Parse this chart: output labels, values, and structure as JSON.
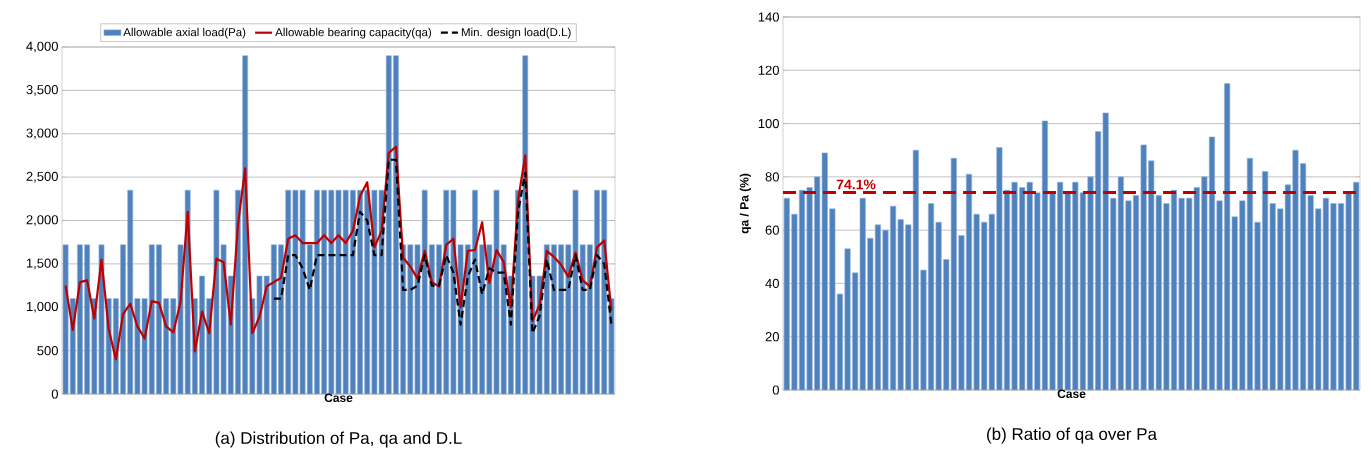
{
  "chart_data": [
    {
      "type": "bar",
      "title": "(a) Distribution of Pa, qa and D.L",
      "xlabel": "Case",
      "categories": [
        null,
        null,
        null,
        null,
        null,
        null,
        null,
        null,
        null,
        null,
        null,
        null,
        null,
        null,
        null,
        null,
        null,
        null,
        null,
        null,
        null,
        null,
        null,
        null,
        null,
        null,
        null,
        null,
        null,
        null,
        null,
        null,
        null,
        null,
        null,
        null,
        null,
        null,
        null,
        null,
        null,
        null,
        null,
        null,
        null,
        null,
        null,
        null,
        null,
        null,
        null,
        null,
        null,
        null,
        null,
        null,
        null,
        null,
        null,
        null,
        null,
        null,
        null,
        null,
        null,
        null,
        null,
        null,
        null,
        null,
        null,
        null,
        null,
        null,
        null,
        null,
        null
      ],
      "ylim": [
        0,
        4000
      ],
      "yticks": [
        0,
        500,
        {
          "value": 1000,
          "label": "1,000"
        },
        {
          "value": 1500,
          "label": "1,500"
        },
        {
          "value": 2000,
          "label": "2,000"
        },
        {
          "value": 2500,
          "label": "2,500"
        },
        {
          "value": 3000,
          "label": "3,000"
        },
        {
          "value": 3500,
          "label": "3,500"
        },
        {
          "value": 4000,
          "label": "4,000"
        }
      ],
      "grid": "y",
      "legend": "top",
      "series": [
        {
          "name": "Allowable axial load(Pa)",
          "type": "bar",
          "color": "#4f81bd",
          "values": [
            1720,
            1100,
            1720,
            1720,
            1100,
            1720,
            1100,
            1100,
            1720,
            2350,
            1100,
            1100,
            1720,
            1720,
            1100,
            1100,
            1720,
            2350,
            1100,
            1360,
            1100,
            2350,
            1720,
            1360,
            2350,
            3900,
            1100,
            1360,
            1360,
            1720,
            1720,
            2350,
            2350,
            2350,
            1720,
            2350,
            2350,
            2350,
            2350,
            2350,
            2350,
            2350,
            2350,
            2350,
            2350,
            3900,
            3900,
            1720,
            1720,
            1720,
            2350,
            1720,
            1720,
            2350,
            2350,
            1720,
            1720,
            2350,
            1720,
            1720,
            2350,
            1720,
            1360,
            2350,
            3900,
            1360,
            1360,
            1720,
            1720,
            1720,
            1720,
            2350,
            1720,
            1720,
            2350,
            2350,
            1100
          ]
        },
        {
          "name": "Allowable bearing capacity(qa)",
          "type": "line",
          "color": "#c00000",
          "line_style": "solid",
          "values": [
            1250,
            740,
            1290,
            1310,
            870,
            1550,
            750,
            400,
            920,
            1040,
            780,
            640,
            1070,
            1050,
            780,
            710,
            1060,
            2100,
            490,
            950,
            700,
            1560,
            1520,
            800,
            1950,
            2600,
            700,
            890,
            1240,
            1290,
            1340,
            1790,
            1830,
            1740,
            1740,
            1740,
            1830,
            1740,
            1830,
            1740,
            1880,
            2280,
            2440,
            1690,
            1880,
            2780,
            2850,
            1570,
            1470,
            1330,
            1650,
            1290,
            1240,
            1720,
            1790,
            1000,
            1650,
            1660,
            1980,
            1280,
            1660,
            1520,
            1000,
            2230,
            2750,
            840,
            1030,
            1650,
            1580,
            1490,
            1350,
            1630,
            1310,
            1240,
            1690,
            1770,
            960
          ]
        },
        {
          "name": "Min. design load(D.L)",
          "type": "line",
          "color": "#000000",
          "line_style": "dashed",
          "values": [
            null,
            null,
            null,
            null,
            null,
            null,
            null,
            null,
            null,
            null,
            null,
            null,
            null,
            null,
            null,
            null,
            null,
            null,
            null,
            null,
            null,
            null,
            null,
            null,
            null,
            null,
            null,
            null,
            null,
            1100,
            1100,
            1600,
            1600,
            1450,
            1200,
            1600,
            1600,
            1600,
            1600,
            1600,
            1600,
            2100,
            2000,
            1600,
            1600,
            2700,
            2700,
            1200,
            1200,
            1250,
            1600,
            1250,
            1250,
            1600,
            1400,
            800,
            1350,
            1550,
            1150,
            1450,
            1400,
            1400,
            800,
            2100,
            2550,
            700,
            900,
            1550,
            1200,
            1200,
            1200,
            1600,
            1200,
            1200,
            1600,
            1500,
            800
          ]
        }
      ]
    },
    {
      "type": "bar",
      "title": "(b) Ratio of qa over Pa",
      "xlabel": "Case",
      "ylabel": "qa / Pa (%)",
      "categories": [
        null,
        null,
        null,
        null,
        null,
        null,
        null,
        null,
        null,
        null,
        null,
        null,
        null,
        null,
        null,
        null,
        null,
        null,
        null,
        null,
        null,
        null,
        null,
        null,
        null,
        null,
        null,
        null,
        null,
        null,
        null,
        null,
        null,
        null,
        null,
        null,
        null,
        null,
        null,
        null,
        null,
        null,
        null,
        null,
        null,
        null,
        null,
        null,
        null,
        null,
        null,
        null,
        null,
        null,
        null,
        null,
        null,
        null,
        null,
        null,
        null,
        null,
        null,
        null,
        null,
        null,
        null,
        null,
        null,
        null,
        null,
        null,
        null,
        null,
        null,
        null
      ],
      "values": [
        72,
        66,
        75,
        76,
        80,
        89,
        68,
        36,
        53,
        44,
        72,
        57,
        62,
        60,
        69,
        64,
        62,
        90,
        45,
        70,
        63,
        49,
        87,
        58,
        81,
        66,
        63,
        66,
        91,
        75,
        78,
        76,
        78,
        74,
        101,
        74,
        78,
        74,
        78,
        74,
        80,
        97,
        104,
        72,
        80,
        71,
        73,
        92,
        86,
        73,
        70,
        75,
        72,
        72,
        76,
        80,
        95,
        71,
        115,
        65,
        71,
        87,
        63,
        82,
        70,
        68,
        77,
        90,
        85,
        73,
        68,
        72,
        70,
        70,
        74,
        78
      ],
      "color": "#4f81bd",
      "ylim": [
        0,
        140
      ],
      "yticks": [
        0,
        20,
        40,
        60,
        80,
        100,
        120,
        140
      ],
      "grid": "y",
      "ref_lines": [
        {
          "axis": "y",
          "value": 74.1,
          "label": "74.1%",
          "color": "#c00000",
          "line_style": "dashed"
        }
      ]
    }
  ]
}
